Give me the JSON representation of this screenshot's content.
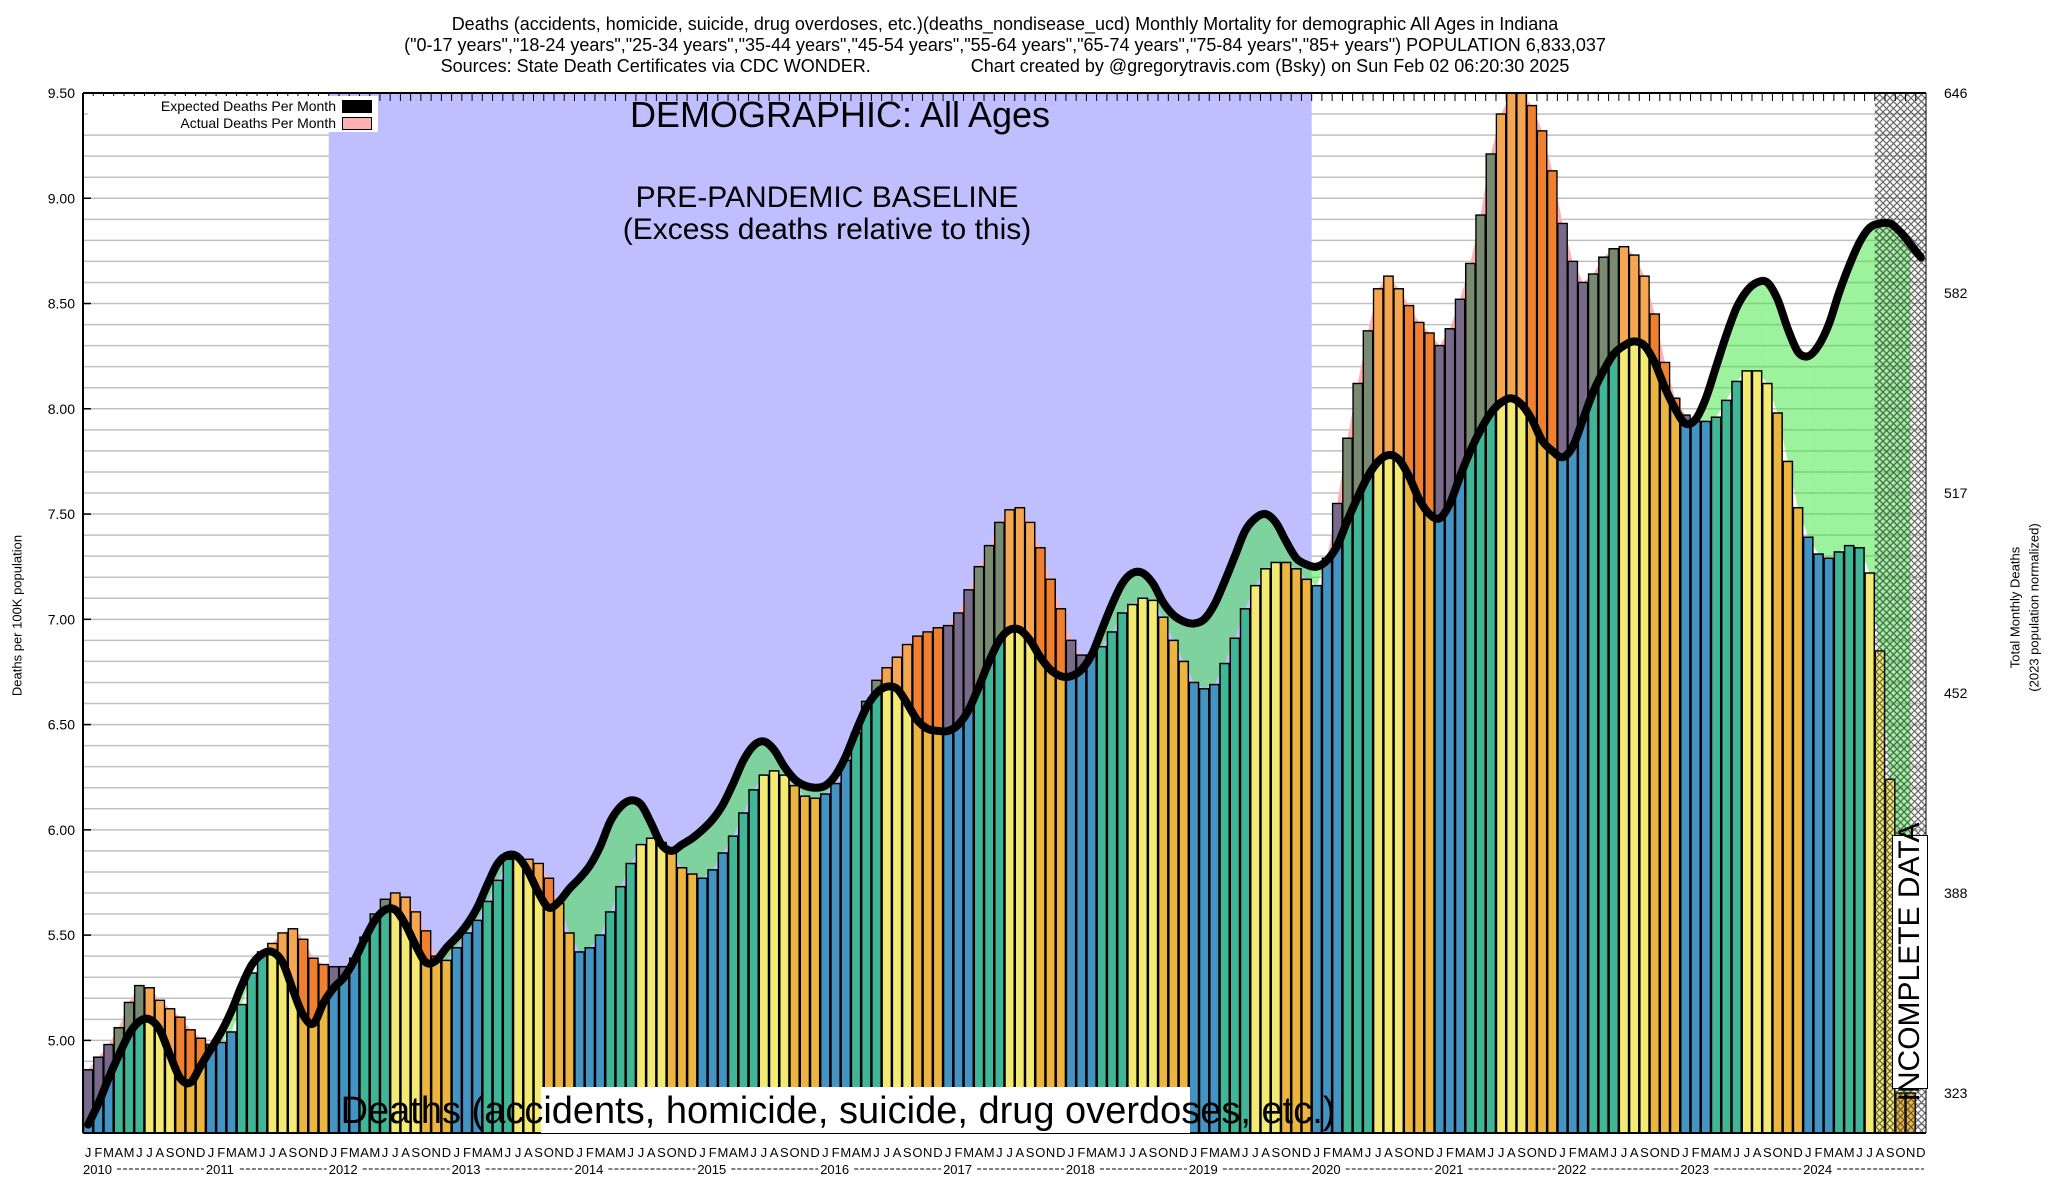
{
  "title": {
    "line1": "Deaths (accidents, homicide, suicide, drug overdoses, etc.)(deaths_nondisease_ucd) Monthly Mortality for demographic All Ages in Indiana",
    "line2": "(\"0-17 years\",\"18-24 years\",\"25-34 years\",\"35-44 years\",\"45-54 years\",\"55-64 years\",\"65-74 years\",\"75-84 years\",\"85+ years\") POPULATION 6,833,037",
    "line3_left": "Sources: State Death Certificates via CDC WONDER.",
    "line3_right": "Chart created by @gregorytravis.com (Bsky) on Sun Feb 02 06:20:30 2025"
  },
  "legend": {
    "expected_label": "Expected Deaths Per Month",
    "actual_label": "Actual Deaths Per Month"
  },
  "annotations": {
    "demographic": "DEMOGRAPHIC: All Ages",
    "baseline_title": "PRE-PANDEMIC BASELINE",
    "baseline_sub": "(Excess deaths relative to this)",
    "cause": "Deaths (accidents, homicide, suicide, drug overdoses, etc.)",
    "incomplete": "INCOMPLETE DATA"
  },
  "axes": {
    "left_label": "Deaths per 100K population",
    "right_label_1": "Total Monthly Deaths",
    "right_label_2": "(2023 population normalized)"
  },
  "colors": {
    "season": [
      "#4393c3",
      "#40b696",
      "#f2ea73",
      "#ecb53f"
    ],
    "season_excess": [
      "#7a6a8a",
      "#7a8a70",
      "#f6a550",
      "#f08030"
    ],
    "baseline_bg": "#bfbfff",
    "excess_area": "#ffb0b0",
    "deficit_area": "rgba(60,230,60,0.5)",
    "expected_line": "#000000",
    "legend_actual": "#ffb0b0",
    "gridline": "#c0c0c0"
  },
  "chart_data": {
    "type": "bar",
    "title": "Deaths (accidents, homicide, suicide, drug overdoses, etc.) Monthly Mortality, All Ages, Indiana",
    "xlabel": "",
    "ylabel": "Deaths per 100K population",
    "ylabel_right": "Total Monthly Deaths (2023 population normalized)",
    "ylim": [
      4.56,
      9.5
    ],
    "grid": true,
    "grid_step": 0.1,
    "legend_position": "top-left",
    "start_month": "2010-01",
    "month_letters": [
      "J",
      "F",
      "M",
      "A",
      "M",
      "J",
      "J",
      "A",
      "S",
      "O",
      "N",
      "D"
    ],
    "years": [
      "2010",
      "2011",
      "2012",
      "2013",
      "2014",
      "2015",
      "2016",
      "2017",
      "2018",
      "2019",
      "2020",
      "2021",
      "2022",
      "2023",
      "2024"
    ],
    "yticks_left": [
      {
        "label": "5.00",
        "value": 5.0
      },
      {
        "label": "5.50",
        "value": 5.5
      },
      {
        "label": "6.00",
        "value": 6.0
      },
      {
        "label": "6.50",
        "value": 6.5
      },
      {
        "label": "7.00",
        "value": 7.0
      },
      {
        "label": "7.50",
        "value": 7.5
      },
      {
        "label": "8.00",
        "value": 8.0
      },
      {
        "label": "8.50",
        "value": 8.5
      },
      {
        "label": "9.00",
        "value": 9.0
      },
      {
        "label": "9.50",
        "value": 9.5
      }
    ],
    "yticks_right": [
      {
        "label": "646",
        "value": 9.5
      },
      {
        "label": "582",
        "value": 8.55
      },
      {
        "label": "517",
        "value": 7.6
      },
      {
        "label": "452",
        "value": 6.65
      },
      {
        "label": "388",
        "value": 5.7
      },
      {
        "label": "323",
        "value": 4.75
      }
    ],
    "baseline_period": {
      "start_index": 24,
      "end_index": 120
    },
    "incomplete_from_index": 175,
    "series": [
      {
        "name": "Actual Deaths Per Month",
        "values": [
          4.86,
          4.92,
          4.98,
          5.06,
          5.18,
          5.26,
          5.25,
          5.19,
          5.15,
          5.11,
          5.05,
          5.01,
          4.98,
          4.99,
          5.04,
          5.17,
          5.32,
          5.42,
          5.46,
          5.51,
          5.53,
          5.48,
          5.39,
          5.36,
          5.35,
          5.35,
          5.39,
          5.49,
          5.6,
          5.67,
          5.7,
          5.68,
          5.61,
          5.52,
          5.4,
          5.38,
          5.44,
          5.51,
          5.57,
          5.66,
          5.76,
          5.86,
          5.87,
          5.86,
          5.84,
          5.77,
          5.65,
          5.51,
          5.42,
          5.44,
          5.5,
          5.61,
          5.73,
          5.84,
          5.93,
          5.96,
          5.94,
          5.89,
          5.82,
          5.79,
          5.77,
          5.81,
          5.89,
          5.97,
          6.08,
          6.19,
          6.26,
          6.28,
          6.26,
          6.21,
          6.16,
          6.15,
          6.17,
          6.22,
          6.33,
          6.46,
          6.61,
          6.71,
          6.77,
          6.82,
          6.88,
          6.92,
          6.94,
          6.96,
          6.97,
          7.03,
          7.14,
          7.25,
          7.35,
          7.46,
          7.52,
          7.53,
          7.46,
          7.34,
          7.19,
          7.05,
          6.9,
          6.83,
          6.83,
          6.87,
          6.94,
          7.03,
          7.07,
          7.1,
          7.09,
          7.01,
          6.9,
          6.8,
          6.7,
          6.67,
          6.69,
          6.79,
          6.91,
          7.05,
          7.16,
          7.24,
          7.27,
          7.27,
          7.24,
          7.19,
          7.16,
          7.29,
          7.55,
          7.86,
          8.12,
          8.37,
          8.57,
          8.63,
          8.57,
          8.49,
          8.41,
          8.36,
          8.3,
          8.38,
          8.52,
          8.69,
          8.92,
          9.21,
          9.4,
          9.5,
          9.5,
          9.44,
          9.32,
          9.13,
          8.88,
          8.7,
          8.6,
          8.64,
          8.72,
          8.76,
          8.77,
          8.73,
          8.63,
          8.45,
          8.22,
          8.05,
          7.97,
          7.94,
          7.94,
          7.96,
          8.04,
          8.13,
          8.18,
          8.18,
          8.12,
          7.98,
          7.75,
          7.53,
          7.39,
          7.31,
          7.29,
          7.32,
          7.35,
          7.34,
          7.22,
          6.85,
          6.24,
          4.75,
          4.75,
          null
        ]
      },
      {
        "name": "Expected Deaths Per Month",
        "values": [
          4.6,
          4.7,
          4.82,
          4.93,
          5.03,
          5.09,
          5.1,
          5.05,
          4.93,
          4.82,
          4.8,
          4.88,
          4.96,
          5.04,
          5.14,
          5.26,
          5.36,
          5.41,
          5.42,
          5.37,
          5.24,
          5.12,
          5.08,
          5.18,
          5.25,
          5.3,
          5.38,
          5.48,
          5.57,
          5.62,
          5.62,
          5.55,
          5.45,
          5.37,
          5.38,
          5.44,
          5.49,
          5.55,
          5.63,
          5.74,
          5.84,
          5.88,
          5.87,
          5.8,
          5.7,
          5.63,
          5.66,
          5.72,
          5.77,
          5.83,
          5.92,
          6.04,
          6.11,
          6.14,
          6.12,
          6.03,
          5.93,
          5.9,
          5.93,
          5.96,
          6.0,
          6.05,
          6.12,
          6.22,
          6.33,
          6.4,
          6.42,
          6.38,
          6.3,
          6.24,
          6.21,
          6.2,
          6.21,
          6.26,
          6.35,
          6.47,
          6.58,
          6.65,
          6.68,
          6.67,
          6.6,
          6.52,
          6.48,
          6.47,
          6.47,
          6.5,
          6.57,
          6.68,
          6.8,
          6.9,
          6.95,
          6.95,
          6.9,
          6.82,
          6.76,
          6.73,
          6.73,
          6.76,
          6.83,
          6.95,
          7.07,
          7.17,
          7.22,
          7.22,
          7.17,
          7.08,
          7.02,
          6.99,
          6.98,
          7.0,
          7.07,
          7.18,
          7.3,
          7.42,
          7.48,
          7.5,
          7.46,
          7.37,
          7.29,
          7.26,
          7.25,
          7.28,
          7.35,
          7.47,
          7.58,
          7.68,
          7.75,
          7.78,
          7.76,
          7.68,
          7.57,
          7.5,
          7.48,
          7.55,
          7.68,
          7.8,
          7.9,
          7.98,
          8.03,
          8.05,
          8.02,
          7.95,
          7.85,
          7.8,
          7.77,
          7.82,
          7.95,
          8.08,
          8.18,
          8.26,
          8.3,
          8.32,
          8.3,
          8.22,
          8.1,
          8.0,
          7.93,
          7.95,
          8.05,
          8.2,
          8.35,
          8.48,
          8.56,
          8.6,
          8.6,
          8.52,
          8.38,
          8.27,
          8.25,
          8.3,
          8.4,
          8.55,
          8.68,
          8.79,
          8.86,
          8.88,
          8.88,
          8.84,
          8.78,
          8.72
        ]
      }
    ]
  }
}
